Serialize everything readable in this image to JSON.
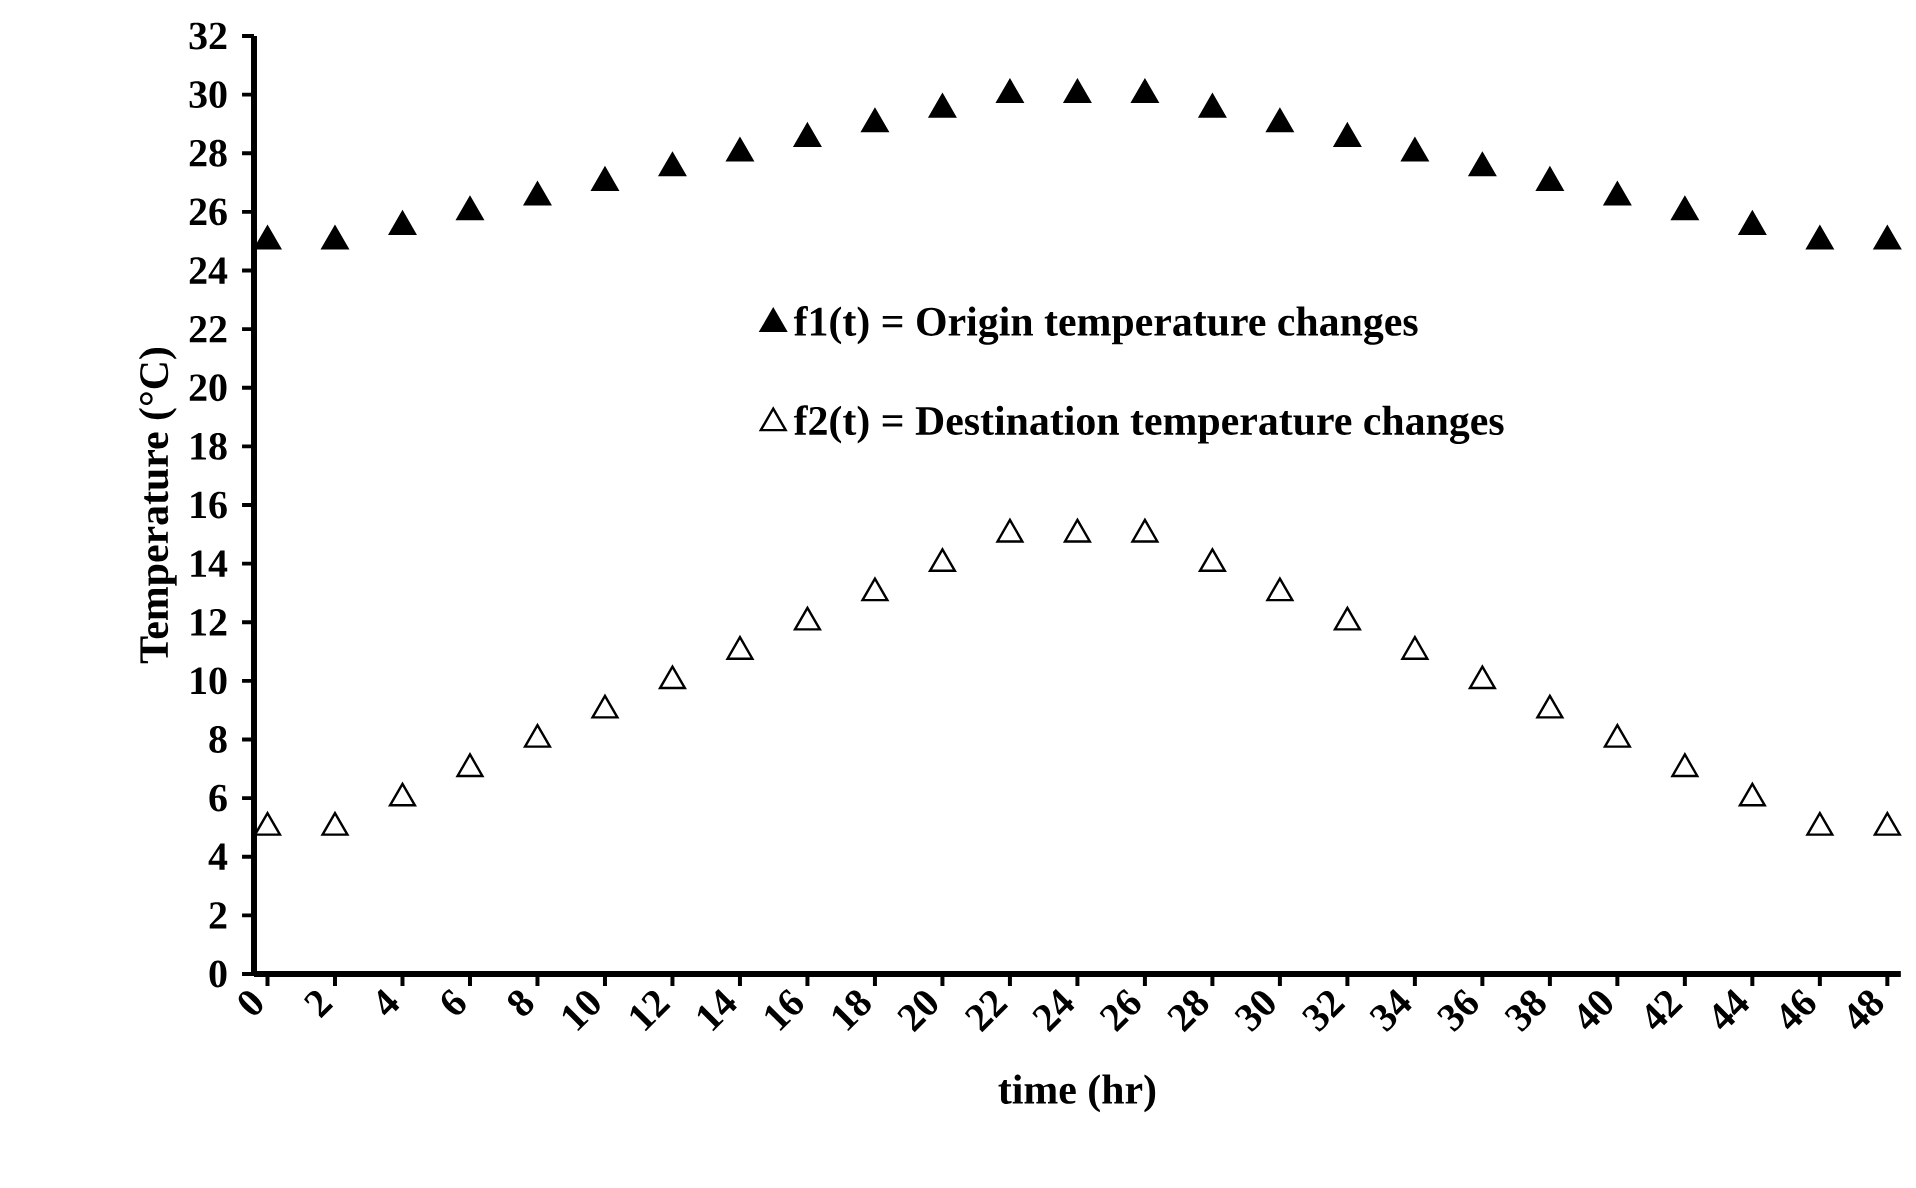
{
  "chart_data": {
    "type": "scatter",
    "xlabel": "time (hr)",
    "ylabel": "Temperature (°C)",
    "x": [
      0,
      2,
      4,
      6,
      8,
      10,
      12,
      14,
      16,
      18,
      20,
      22,
      24,
      26,
      28,
      30,
      32,
      34,
      36,
      38,
      40,
      42,
      44,
      46,
      48
    ],
    "series": [
      {
        "name": "f1(t) = Origin temperature changes",
        "color": "#000000",
        "values": [
          25,
          25,
          25.5,
          26,
          26.5,
          27,
          27.5,
          28,
          28.5,
          29,
          29.5,
          30,
          30,
          30,
          29.5,
          29,
          28.5,
          28,
          27.5,
          27,
          26.5,
          26,
          25.5,
          25,
          25
        ]
      },
      {
        "name": "f2(t) = Destination temperature changes",
        "color": "#ffffff",
        "values": [
          5,
          5,
          6,
          7,
          8,
          9,
          10,
          11,
          12,
          13,
          14,
          15,
          15,
          15,
          14,
          13,
          12,
          11,
          10,
          9,
          8,
          7,
          6,
          5,
          5
        ]
      }
    ],
    "xlim": [
      -0.4,
      48.4
    ],
    "ylim": [
      0,
      32
    ],
    "xticks": [
      0,
      2,
      4,
      6,
      8,
      10,
      12,
      14,
      16,
      18,
      20,
      22,
      24,
      26,
      28,
      30,
      32,
      34,
      36,
      38,
      40,
      42,
      44,
      46,
      48
    ],
    "yticks": [
      0,
      2,
      4,
      6,
      8,
      10,
      12,
      14,
      16,
      18,
      20,
      22,
      24,
      26,
      28,
      30,
      32
    ],
    "marker": "triangle",
    "legend": "top",
    "grid": false
  }
}
